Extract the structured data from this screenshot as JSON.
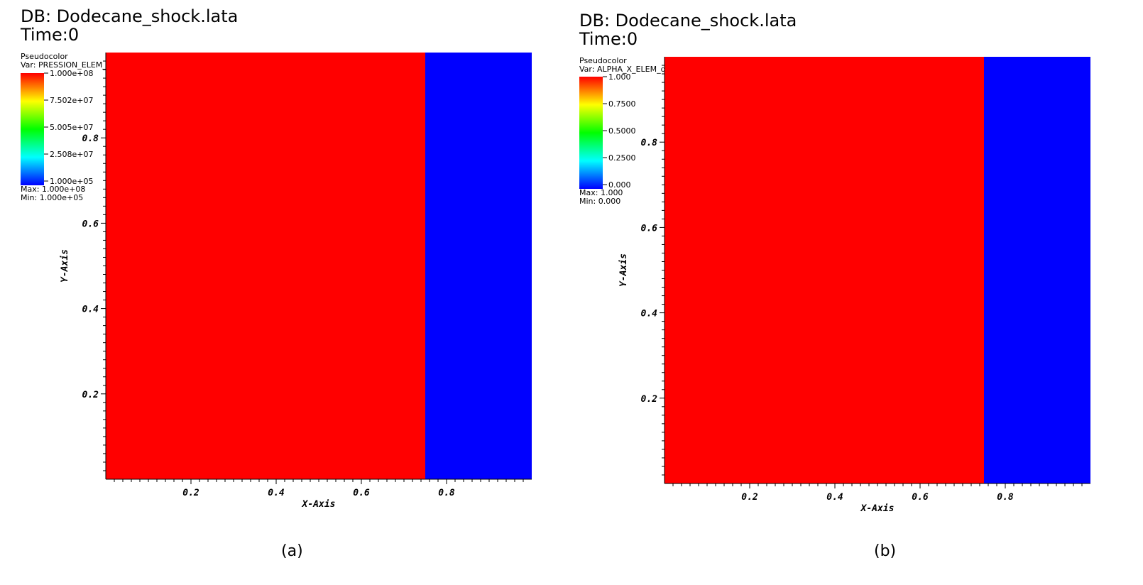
{
  "panels": [
    {
      "db_title": "DB: Dodecane_shock.lata",
      "time_label": "Time:0",
      "legend_type": "Pseudocolor",
      "legend_var": "Var: PRESSION_ELEM_dom",
      "colorbar_ticks": [
        "1.000e+08",
        "7.502e+07",
        "5.005e+07",
        "2.508e+07",
        "1.000e+05"
      ],
      "max_label": "Max:  1.000e+08",
      "min_label": "Min:  1.000e+05",
      "caption": "(a)"
    },
    {
      "db_title": "DB: Dodecane_shock.lata",
      "time_label": "Time:0",
      "legend_type": "Pseudocolor",
      "legend_var": "Var: ALPHA_X_ELEM_dom",
      "colorbar_ticks": [
        "1.000",
        "0.7500",
        "0.5000",
        "0.2500",
        "0.000"
      ],
      "max_label": "Max:  1.000",
      "min_label": "Min:  0.000",
      "caption": "(b)"
    }
  ],
  "colors": {
    "high": "#ff0000",
    "low": "#0000ff"
  },
  "chart_data": [
    {
      "type": "heatmap",
      "xlabel": "X-Axis",
      "ylabel": "Y-Axis",
      "xlim": [
        0,
        1
      ],
      "ylim": [
        0,
        1
      ],
      "x_ticks": [
        "0.2",
        "0.4",
        "0.6",
        "0.8"
      ],
      "y_ticks": [
        "0.2",
        "0.4",
        "0.6",
        "0.8"
      ],
      "regions": [
        {
          "x_range": [
            0,
            0.75
          ],
          "value": 100000000,
          "color": "#ff0000"
        },
        {
          "x_range": [
            0.75,
            1
          ],
          "value": 100000,
          "color": "#0000ff"
        }
      ]
    },
    {
      "type": "heatmap",
      "xlabel": "X-Axis",
      "ylabel": "Y-Axis",
      "xlim": [
        0,
        1
      ],
      "ylim": [
        0,
        1
      ],
      "x_ticks": [
        "0.2",
        "0.4",
        "0.6",
        "0.8"
      ],
      "y_ticks": [
        "0.2",
        "0.4",
        "0.6",
        "0.8"
      ],
      "regions": [
        {
          "x_range": [
            0,
            0.75
          ],
          "value": 1,
          "color": "#ff0000"
        },
        {
          "x_range": [
            0.75,
            1
          ],
          "value": 0,
          "color": "#0000ff"
        }
      ]
    }
  ]
}
